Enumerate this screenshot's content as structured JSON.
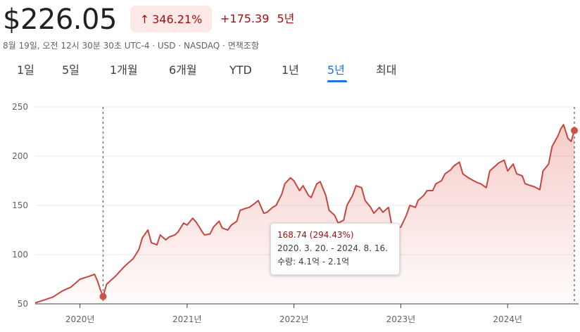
{
  "quote": {
    "price": "$226.05",
    "change_percent": "346.21%",
    "change_arrow": "↑",
    "change_absolute": "+175.39",
    "change_period": "5년",
    "meta": "8월 19일, 오전 12시 30분 30초 UTC-4 · USD · NASDAQ · 면책조항"
  },
  "tabs": [
    {
      "label": "1일"
    },
    {
      "label": "5일"
    },
    {
      "label": "1개월"
    },
    {
      "label": "6개월"
    },
    {
      "label": "YTD"
    },
    {
      "label": "1년"
    },
    {
      "label": "5년",
      "active": true
    },
    {
      "label": "최대"
    }
  ],
  "tooltip": {
    "value": "168.74 (294.43%)",
    "date_range": "2020. 3. 20. - 2024. 8. 16.",
    "volume": "수량: 4.1억 - 2.1억"
  },
  "colors": {
    "line": "#c5473f",
    "marker": "#d14f44",
    "negative_text": "#a50e0e",
    "active_tab": "#1a73e8"
  },
  "chart_data": {
    "type": "area",
    "y_ticks": [
      "250",
      "200",
      "150",
      "100",
      "50"
    ],
    "ylim": [
      50,
      250
    ],
    "x_ticks": [
      "2020년",
      "2021년",
      "2022년",
      "2023년",
      "2024년"
    ],
    "x_tick_dates": [
      "2020-01",
      "2021-01",
      "2022-01",
      "2023-01",
      "2024-01"
    ],
    "grid": true,
    "start_marker": {
      "date": "2020-03-20",
      "value": 57.5
    },
    "end_marker": {
      "date": "2024-08-16",
      "value": 226.05
    },
    "points": [
      [
        "2019-08",
        51
      ],
      [
        "2019-09",
        54
      ],
      [
        "2019-10",
        57
      ],
      [
        "2019-11",
        63
      ],
      [
        "2019-12",
        67
      ],
      [
        "2020-01",
        75
      ],
      [
        "2020-02",
        78
      ],
      [
        "2020-02-20",
        80
      ],
      [
        "2020-03-01",
        73
      ],
      [
        "2020-03-10",
        65
      ],
      [
        "2020-03-20",
        57.5
      ],
      [
        "2020-04",
        70
      ],
      [
        "2020-05",
        78
      ],
      [
        "2020-06",
        88
      ],
      [
        "2020-07",
        96
      ],
      [
        "2020-07-20",
        105
      ],
      [
        "2020-08",
        117
      ],
      [
        "2020-08-20",
        125
      ],
      [
        "2020-09",
        112
      ],
      [
        "2020-09-20",
        110
      ],
      [
        "2020-10",
        120
      ],
      [
        "2020-10-20",
        115
      ],
      [
        "2020-11",
        118
      ],
      [
        "2020-11-20",
        120
      ],
      [
        "2020-12",
        123
      ],
      [
        "2020-12-20",
        132
      ],
      [
        "2021-01",
        130
      ],
      [
        "2021-01-20",
        137
      ],
      [
        "2021-02",
        133
      ],
      [
        "2021-02-20",
        124
      ],
      [
        "2021-03",
        120
      ],
      [
        "2021-03-20",
        121
      ],
      [
        "2021-04",
        128
      ],
      [
        "2021-04-20",
        134
      ],
      [
        "2021-05",
        127
      ],
      [
        "2021-05-20",
        125
      ],
      [
        "2021-06",
        130
      ],
      [
        "2021-06-20",
        134
      ],
      [
        "2021-07",
        145
      ],
      [
        "2021-07-20",
        147
      ],
      [
        "2021-08",
        148
      ],
      [
        "2021-08-20",
        152
      ],
      [
        "2021-09",
        155
      ],
      [
        "2021-09-20",
        142
      ],
      [
        "2021-10",
        143
      ],
      [
        "2021-10-20",
        148
      ],
      [
        "2021-11",
        150
      ],
      [
        "2021-11-20",
        161
      ],
      [
        "2021-12",
        172
      ],
      [
        "2021-12-20",
        178
      ],
      [
        "2022-01",
        175
      ],
      [
        "2022-01-20",
        165
      ],
      [
        "2022-02",
        170
      ],
      [
        "2022-02-20",
        160
      ],
      [
        "2022-03",
        158
      ],
      [
        "2022-03-20",
        172
      ],
      [
        "2022-04",
        174
      ],
      [
        "2022-04-20",
        160
      ],
      [
        "2022-05",
        145
      ],
      [
        "2022-05-20",
        140
      ],
      [
        "2022-06",
        132
      ],
      [
        "2022-06-20",
        135
      ],
      [
        "2022-07",
        150
      ],
      [
        "2022-07-20",
        160
      ],
      [
        "2022-08",
        170
      ],
      [
        "2022-08-20",
        168
      ],
      [
        "2022-09",
        155
      ],
      [
        "2022-09-20",
        148
      ],
      [
        "2022-10",
        142
      ],
      [
        "2022-10-20",
        148
      ],
      [
        "2022-11",
        143
      ],
      [
        "2022-11-20",
        148
      ],
      [
        "2022-12",
        130
      ],
      [
        "2022-12-20",
        127
      ],
      [
        "2023-01",
        128
      ],
      [
        "2023-01-20",
        140
      ],
      [
        "2023-02",
        150
      ],
      [
        "2023-02-20",
        148
      ],
      [
        "2023-03",
        155
      ],
      [
        "2023-03-20",
        160
      ],
      [
        "2023-04",
        165
      ],
      [
        "2023-04-20",
        165
      ],
      [
        "2023-05",
        172
      ],
      [
        "2023-05-20",
        175
      ],
      [
        "2023-06",
        182
      ],
      [
        "2023-06-20",
        186
      ],
      [
        "2023-07",
        190
      ],
      [
        "2023-07-20",
        194
      ],
      [
        "2023-08",
        182
      ],
      [
        "2023-08-20",
        178
      ],
      [
        "2023-09",
        176
      ],
      [
        "2023-09-20",
        173
      ],
      [
        "2023-10",
        172
      ],
      [
        "2023-10-20",
        168
      ],
      [
        "2023-11",
        185
      ],
      [
        "2023-11-20",
        190
      ],
      [
        "2023-12",
        193
      ],
      [
        "2023-12-20",
        196
      ],
      [
        "2024-01",
        185
      ],
      [
        "2024-01-20",
        192
      ],
      [
        "2024-02",
        182
      ],
      [
        "2024-02-20",
        180
      ],
      [
        "2024-03",
        172
      ],
      [
        "2024-03-20",
        170
      ],
      [
        "2024-04",
        169
      ],
      [
        "2024-04-20",
        166
      ],
      [
        "2024-05",
        185
      ],
      [
        "2024-05-20",
        192
      ],
      [
        "2024-06",
        210
      ],
      [
        "2024-06-20",
        220
      ],
      [
        "2024-07",
        228
      ],
      [
        "2024-07-10",
        232
      ],
      [
        "2024-07-25",
        218
      ],
      [
        "2024-08-05",
        215
      ],
      [
        "2024-08-16",
        226.05
      ]
    ]
  }
}
